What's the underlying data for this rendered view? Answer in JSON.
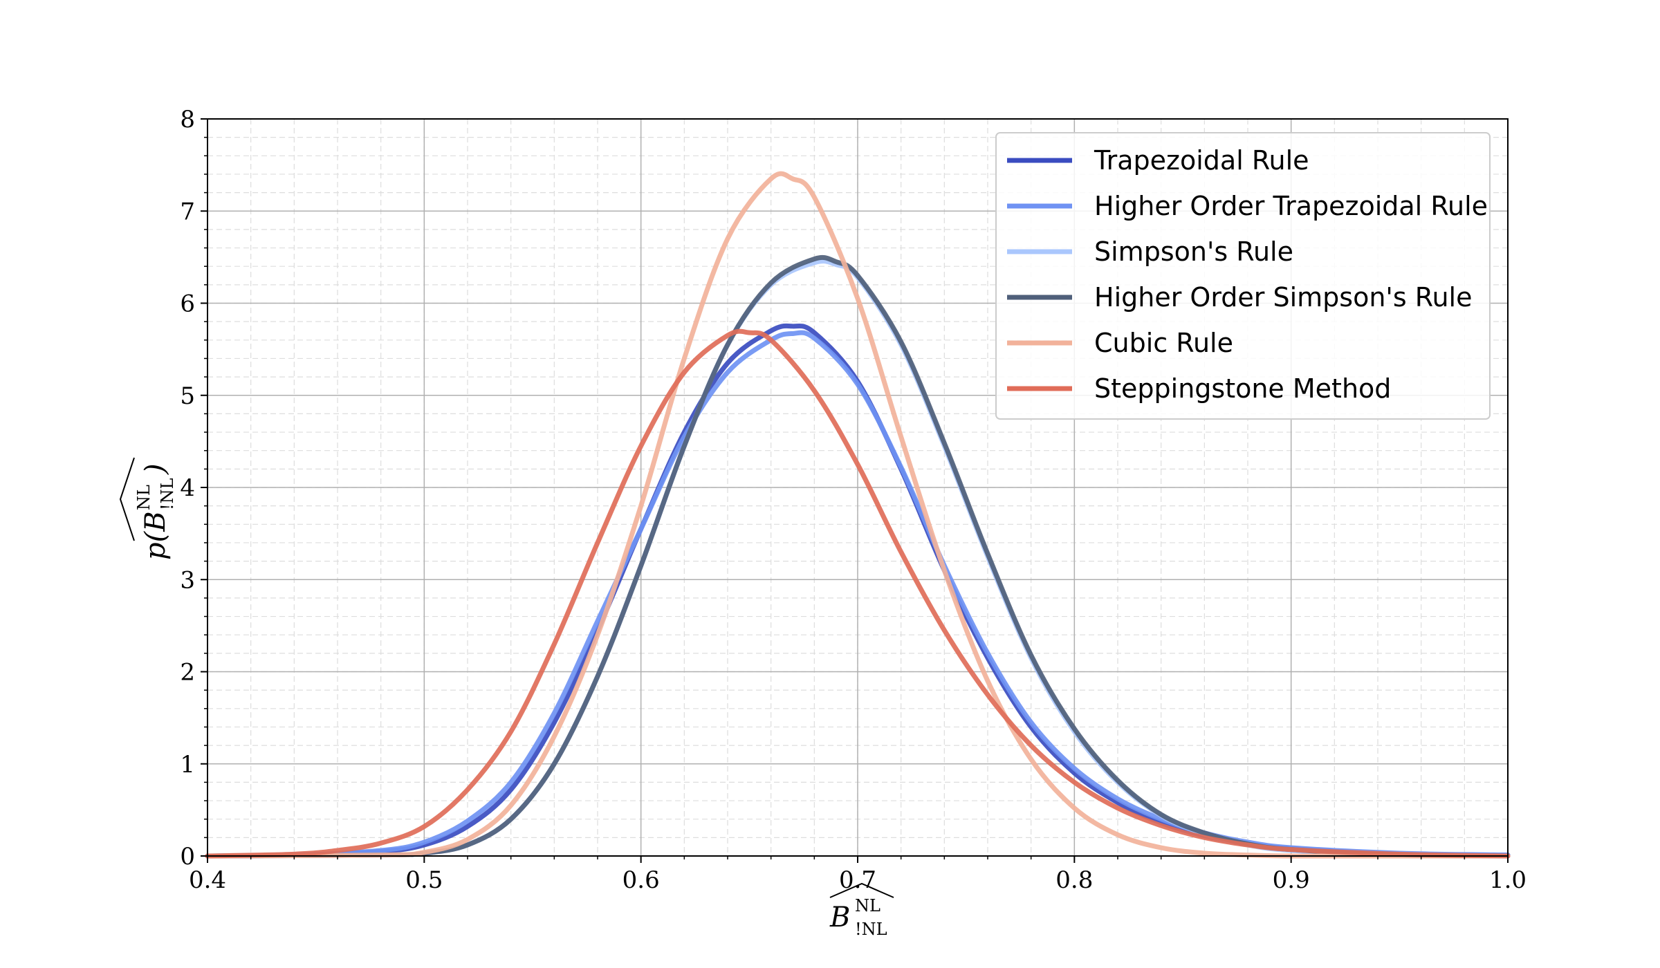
{
  "chart_data": {
    "type": "line",
    "title": "",
    "xlabel": {
      "main": "B",
      "sup": "NL",
      "sub": "!NL"
    },
    "ylabel": {
      "prefix": "p(",
      "main": "B",
      "sup": "NL",
      "sub": "!NL",
      "suffix": ")"
    },
    "xlim": [
      0.4,
      1.0
    ],
    "ylim": [
      0,
      8
    ],
    "xticks": [
      0.4,
      0.5,
      0.6,
      0.7,
      0.8,
      0.9,
      1.0
    ],
    "xtick_labels": [
      "0.4",
      "0.5",
      "0.6",
      "0.7",
      "0.8",
      "0.9",
      "1.0"
    ],
    "yticks": [
      0,
      1,
      2,
      3,
      4,
      5,
      6,
      7,
      8
    ],
    "ytick_labels": [
      "0",
      "1",
      "2",
      "3",
      "4",
      "5",
      "6",
      "7",
      "8"
    ],
    "grid": "major and minor, dashed minor",
    "legend_position": "top-right",
    "series": [
      {
        "name": "Trapezoidal Rule",
        "color": "#3a4cc0",
        "x": [
          0.4,
          0.44,
          0.48,
          0.5,
          0.52,
          0.54,
          0.56,
          0.58,
          0.6,
          0.62,
          0.64,
          0.66,
          0.67,
          0.68,
          0.7,
          0.72,
          0.74,
          0.76,
          0.78,
          0.8,
          0.82,
          0.84,
          0.86,
          0.88,
          0.9,
          0.95,
          1.0
        ],
        "y": [
          0.0,
          0.01,
          0.05,
          0.12,
          0.32,
          0.72,
          1.45,
          2.45,
          3.55,
          4.6,
          5.35,
          5.7,
          5.75,
          5.68,
          5.15,
          4.2,
          3.1,
          2.15,
          1.4,
          0.9,
          0.58,
          0.36,
          0.22,
          0.13,
          0.08,
          0.02,
          0.01
        ]
      },
      {
        "name": "Higher Order Trapezoidal Rule",
        "color": "#6f92f3",
        "x": [
          0.4,
          0.44,
          0.48,
          0.5,
          0.52,
          0.54,
          0.56,
          0.58,
          0.6,
          0.62,
          0.64,
          0.66,
          0.67,
          0.68,
          0.7,
          0.72,
          0.74,
          0.76,
          0.78,
          0.8,
          0.82,
          0.84,
          0.86,
          0.88,
          0.9,
          0.95,
          1.0
        ],
        "y": [
          0.0,
          0.01,
          0.06,
          0.15,
          0.38,
          0.8,
          1.55,
          2.55,
          3.55,
          4.55,
          5.25,
          5.6,
          5.67,
          5.62,
          5.12,
          4.22,
          3.15,
          2.2,
          1.45,
          0.95,
          0.62,
          0.4,
          0.25,
          0.15,
          0.09,
          0.03,
          0.01
        ]
      },
      {
        "name": "Simpson's Rule",
        "color": "#aac7fd",
        "x": [
          0.4,
          0.48,
          0.5,
          0.52,
          0.54,
          0.56,
          0.58,
          0.6,
          0.62,
          0.64,
          0.66,
          0.68,
          0.69,
          0.7,
          0.72,
          0.74,
          0.76,
          0.78,
          0.8,
          0.82,
          0.84,
          0.86,
          0.88,
          0.9,
          0.95,
          1.0
        ],
        "y": [
          0.0,
          0.01,
          0.03,
          0.12,
          0.4,
          1.0,
          1.95,
          3.15,
          4.45,
          5.55,
          6.2,
          6.44,
          6.42,
          6.28,
          5.55,
          4.45,
          3.25,
          2.15,
          1.35,
          0.8,
          0.44,
          0.24,
          0.12,
          0.06,
          0.01,
          0.0
        ]
      },
      {
        "name": "Higher Order Simpson's Rule",
        "color": "#4f5f7a",
        "x": [
          0.4,
          0.48,
          0.5,
          0.52,
          0.54,
          0.56,
          0.58,
          0.6,
          0.62,
          0.64,
          0.66,
          0.68,
          0.69,
          0.7,
          0.72,
          0.74,
          0.76,
          0.78,
          0.8,
          0.82,
          0.84,
          0.86,
          0.88,
          0.9,
          0.95,
          1.0
        ],
        "y": [
          0.0,
          0.01,
          0.03,
          0.12,
          0.4,
          1.0,
          1.95,
          3.15,
          4.45,
          5.55,
          6.22,
          6.48,
          6.45,
          6.3,
          5.58,
          4.48,
          3.28,
          2.18,
          1.38,
          0.82,
          0.45,
          0.25,
          0.13,
          0.07,
          0.01,
          0.0
        ]
      },
      {
        "name": "Cubic Rule",
        "color": "#f2b29a",
        "x": [
          0.4,
          0.48,
          0.5,
          0.52,
          0.54,
          0.56,
          0.58,
          0.6,
          0.62,
          0.64,
          0.66,
          0.67,
          0.68,
          0.7,
          0.72,
          0.74,
          0.76,
          0.78,
          0.8,
          0.82,
          0.84,
          0.86,
          0.88,
          0.9,
          0.95,
          1.0
        ],
        "y": [
          0.0,
          0.01,
          0.04,
          0.18,
          0.55,
          1.3,
          2.4,
          3.8,
          5.4,
          6.7,
          7.35,
          7.35,
          7.15,
          6.05,
          4.55,
          3.1,
          1.9,
          1.05,
          0.52,
          0.23,
          0.09,
          0.03,
          0.01,
          0.0,
          0.0,
          0.0
        ]
      },
      {
        "name": "Steppingstone Method",
        "color": "#e06c58",
        "x": [
          0.4,
          0.44,
          0.46,
          0.48,
          0.5,
          0.52,
          0.54,
          0.56,
          0.58,
          0.6,
          0.62,
          0.64,
          0.65,
          0.66,
          0.68,
          0.7,
          0.72,
          0.74,
          0.76,
          0.78,
          0.8,
          0.82,
          0.84,
          0.86,
          0.88,
          0.9,
          0.95,
          1.0
        ],
        "y": [
          0.0,
          0.02,
          0.06,
          0.14,
          0.32,
          0.72,
          1.35,
          2.3,
          3.4,
          4.45,
          5.25,
          5.65,
          5.68,
          5.6,
          5.05,
          4.25,
          3.3,
          2.45,
          1.75,
          1.2,
          0.8,
          0.52,
          0.33,
          0.2,
          0.12,
          0.07,
          0.02,
          0.0
        ]
      }
    ]
  }
}
